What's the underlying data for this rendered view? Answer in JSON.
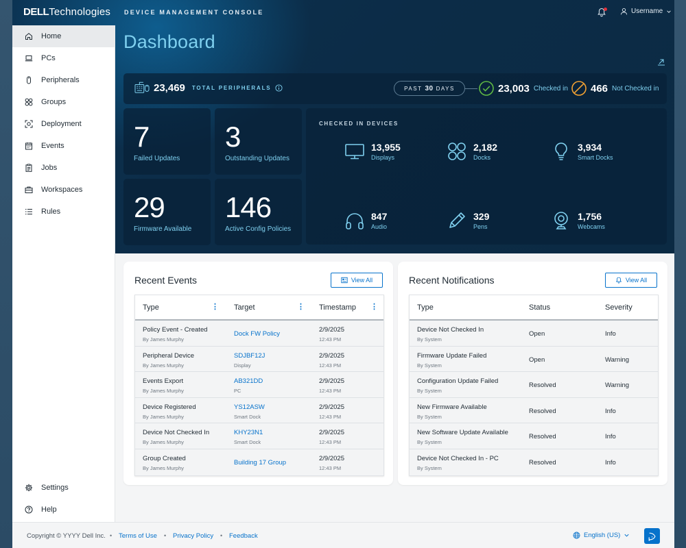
{
  "header": {
    "brand_bold": "DELL",
    "brand_light": "Technologies",
    "console_title": "DEVICE MANAGEMENT CONSOLE",
    "username": "Username"
  },
  "sidebar": {
    "items": [
      {
        "label": "Home",
        "icon": "home-icon"
      },
      {
        "label": "PCs",
        "icon": "laptop-icon"
      },
      {
        "label": "Peripherals",
        "icon": "mouse-icon"
      },
      {
        "label": "Groups",
        "icon": "groups-icon"
      },
      {
        "label": "Deployment",
        "icon": "deployment-icon"
      },
      {
        "label": "Events",
        "icon": "calendar-icon"
      },
      {
        "label": "Jobs",
        "icon": "clipboard-icon"
      },
      {
        "label": "Workspaces",
        "icon": "briefcase-icon"
      },
      {
        "label": "Rules",
        "icon": "list-icon"
      }
    ],
    "bottom_items": [
      {
        "label": "Settings",
        "icon": "gear-icon"
      },
      {
        "label": "Help",
        "icon": "help-icon"
      }
    ]
  },
  "page": {
    "title": "Dashboard"
  },
  "summary": {
    "total_peripherals": "23,469",
    "total_label": "TOTAL PERIPHERALS",
    "past_prefix": "PAST",
    "past_days": "30",
    "past_suffix": "DAYS",
    "checked_in": "23,003",
    "checked_in_label": "Checked in",
    "not_checked_in": "466",
    "not_checked_in_label": "Not Checked in"
  },
  "tiles": [
    {
      "value": "7",
      "label": "Failed Updates"
    },
    {
      "value": "3",
      "label": "Outstanding Updates"
    },
    {
      "value": "29",
      "label": "Firmware Available"
    },
    {
      "value": "146",
      "label": "Active Config Policies"
    }
  ],
  "devices": {
    "heading": "CHECKED IN DEVICES",
    "items": [
      {
        "value": "13,955",
        "label": "Displays",
        "icon": "display-icon"
      },
      {
        "value": "2,182",
        "label": "Docks",
        "icon": "dock-icon"
      },
      {
        "value": "3,934",
        "label": "Smart Docks",
        "icon": "lightbulb-icon"
      },
      {
        "value": "847",
        "label": "Audio",
        "icon": "headphones-icon"
      },
      {
        "value": "329",
        "label": "Pens",
        "icon": "pen-icon"
      },
      {
        "value": "1,756",
        "label": "Webcams",
        "icon": "webcam-icon"
      }
    ]
  },
  "recent_events": {
    "title": "Recent Events",
    "view_all": "View All",
    "columns": [
      "Type",
      "Target",
      "Timestamp"
    ],
    "rows": [
      {
        "type": "Policy Event - Created",
        "by": "By James Murphy",
        "target": "Dock FW Policy",
        "target_sub": "",
        "date": "2/9/2025",
        "time": "12:43 PM"
      },
      {
        "type": "Peripheral Device",
        "by": "By James Murphy",
        "target": "SDJBF12J",
        "target_sub": "Display",
        "date": "2/9/2025",
        "time": "12:43 PM"
      },
      {
        "type": "Events Export",
        "by": "By James Murphy",
        "target": "AB321DD",
        "target_sub": "PC",
        "date": "2/9/2025",
        "time": "12:43 PM"
      },
      {
        "type": "Device Registered",
        "by": "By James Murphy",
        "target": "YS12ASW",
        "target_sub": "Smart Dock",
        "date": "2/9/2025",
        "time": "12:43 PM"
      },
      {
        "type": "Device Not Checked In",
        "by": "By James Murphy",
        "target": "KHY23N1",
        "target_sub": "Smart Dock",
        "date": "2/9/2025",
        "time": "12:43 PM"
      },
      {
        "type": "Group Created",
        "by": "By James Murphy",
        "target": "Building 17 Group",
        "target_sub": "",
        "date": "2/9/2025",
        "time": "12:43 PM"
      }
    ]
  },
  "recent_notifications": {
    "title": "Recent Notifications",
    "view_all": "View All",
    "columns": [
      "Type",
      "Status",
      "Severity"
    ],
    "rows": [
      {
        "type": "Device Not Checked In",
        "by": "By System",
        "status": "Open",
        "severity": "Info"
      },
      {
        "type": "Firmware Update Failed",
        "by": "By System",
        "status": "Open",
        "severity": "Warning"
      },
      {
        "type": "Configuration Update Failed",
        "by": "By System",
        "status": "Resolved",
        "severity": "Warning"
      },
      {
        "type": "New Firmware Available",
        "by": "By System",
        "status": "Resolved",
        "severity": "Info"
      },
      {
        "type": "New Software Update Available",
        "by": "By System",
        "status": "Resolved",
        "severity": "Info"
      },
      {
        "type": "Device Not Checked In - PC",
        "by": "By System",
        "status": "Resolved",
        "severity": "Info"
      }
    ]
  },
  "footer": {
    "copyright": "Copyright © YYYY Dell Inc.",
    "links": [
      "Terms of Use",
      "Privacy Policy",
      "Feedback"
    ],
    "language": "English (US)"
  },
  "colors": {
    "accent": "#0672cb",
    "cyan": "#7fd0ef",
    "checked_green": "#5fb944",
    "not_checked_orange": "#f2a233"
  }
}
